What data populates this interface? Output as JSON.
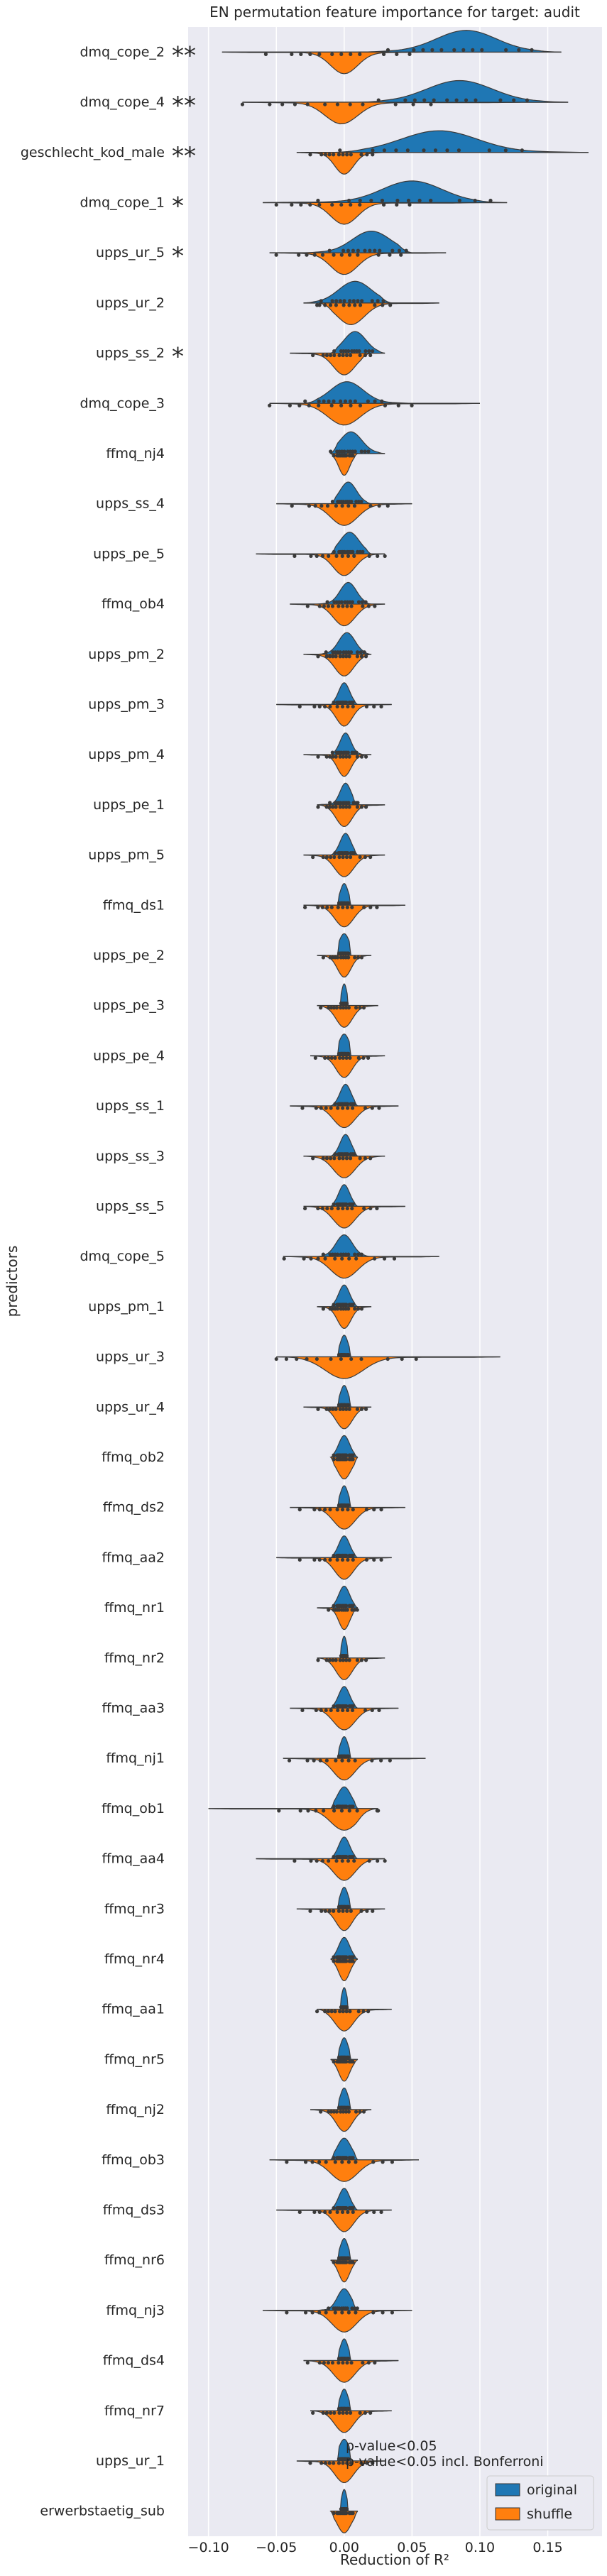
{
  "chart_data": {
    "type": "violin",
    "title": "EN permutation feature importance for target: audit",
    "xlabel": "Reduction of R²",
    "ylabel": "predictors",
    "xlim": [
      -0.115,
      0.19
    ],
    "x_ticks": [
      -0.1,
      -0.05,
      0.0,
      0.05,
      0.1,
      0.15
    ],
    "x_tick_labels": [
      "−0.10",
      "−0.05",
      "0.00",
      "0.05",
      "0.10",
      "0.15"
    ],
    "grid": true,
    "legend": {
      "placement": "bottom-right",
      "entries": [
        {
          "name": "original",
          "color": "#1f77b4"
        },
        {
          "name": "shuffle",
          "color": "#ff7f0e"
        }
      ]
    },
    "significance_notes": [
      "p-value<0.05",
      "p-value<0.05 incl. Bonferroni"
    ],
    "predictors": [
      {
        "name": "dmq_cope_2",
        "sig": "**",
        "original": {
          "center": 0.09,
          "spread": 0.022,
          "min": 0.01,
          "max": 0.16
        },
        "shuffle": {
          "center": 0.0,
          "spread": 0.01,
          "min": -0.09,
          "max": 0.06
        }
      },
      {
        "name": "dmq_cope_4",
        "sig": "**",
        "original": {
          "center": 0.085,
          "spread": 0.024,
          "min": 0.01,
          "max": 0.165
        },
        "shuffle": {
          "center": -0.002,
          "spread": 0.012,
          "min": -0.075,
          "max": 0.13
        }
      },
      {
        "name": "geschlecht_kod_male",
        "sig": "**",
        "original": {
          "center": 0.07,
          "spread": 0.028,
          "min": -0.01,
          "max": 0.18
        },
        "shuffle": {
          "center": 0.0,
          "spread": 0.007,
          "min": -0.035,
          "max": 0.03
        }
      },
      {
        "name": "dmq_cope_1",
        "sig": "*",
        "original": {
          "center": 0.05,
          "spread": 0.022,
          "min": -0.06,
          "max": 0.12
        },
        "shuffle": {
          "center": 0.0,
          "spread": 0.01,
          "min": -0.05,
          "max": 0.1
        }
      },
      {
        "name": "upps_ur_5",
        "sig": "*",
        "original": {
          "center": 0.02,
          "spread": 0.014,
          "min": -0.03,
          "max": 0.05
        },
        "shuffle": {
          "center": 0.0,
          "spread": 0.01,
          "min": -0.055,
          "max": 0.075
        }
      },
      {
        "name": "upps_ur_2",
        "sig": "",
        "original": {
          "center": 0.008,
          "spread": 0.012,
          "min": -0.03,
          "max": 0.035
        },
        "shuffle": {
          "center": 0.005,
          "spread": 0.01,
          "min": -0.02,
          "max": 0.07
        }
      },
      {
        "name": "upps_ss_2",
        "sig": "*",
        "original": {
          "center": 0.008,
          "spread": 0.008,
          "min": -0.01,
          "max": 0.03
        },
        "shuffle": {
          "center": 0.0,
          "spread": 0.008,
          "min": -0.04,
          "max": 0.02
        }
      },
      {
        "name": "dmq_cope_3",
        "sig": "",
        "original": {
          "center": 0.002,
          "spread": 0.012,
          "min": -0.03,
          "max": 0.05
        },
        "shuffle": {
          "center": 0.0,
          "spread": 0.012,
          "min": -0.055,
          "max": 0.1
        }
      },
      {
        "name": "ffmq_nj4",
        "sig": "",
        "original": {
          "center": 0.005,
          "spread": 0.008,
          "min": -0.01,
          "max": 0.03
        },
        "shuffle": {
          "center": 0.0,
          "spread": 0.004,
          "min": -0.01,
          "max": 0.01
        }
      },
      {
        "name": "upps_ss_4",
        "sig": "",
        "original": {
          "center": 0.003,
          "spread": 0.006,
          "min": -0.01,
          "max": 0.02
        },
        "shuffle": {
          "center": 0.0,
          "spread": 0.01,
          "min": -0.05,
          "max": 0.05
        }
      },
      {
        "name": "upps_pe_5",
        "sig": "",
        "original": {
          "center": 0.004,
          "spread": 0.007,
          "min": -0.01,
          "max": 0.02
        },
        "shuffle": {
          "center": 0.0,
          "spread": 0.008,
          "min": -0.065,
          "max": 0.03
        }
      },
      {
        "name": "ffmq_ob4",
        "sig": "",
        "original": {
          "center": 0.003,
          "spread": 0.006,
          "min": -0.02,
          "max": 0.02
        },
        "shuffle": {
          "center": 0.0,
          "spread": 0.008,
          "min": -0.04,
          "max": 0.03
        }
      },
      {
        "name": "upps_pm_2",
        "sig": "",
        "original": {
          "center": 0.002,
          "spread": 0.006,
          "min": -0.02,
          "max": 0.02
        },
        "shuffle": {
          "center": 0.0,
          "spread": 0.007,
          "min": -0.03,
          "max": 0.02
        }
      },
      {
        "name": "upps_pm_3",
        "sig": "",
        "original": {
          "center": 0.0,
          "spread": 0.004,
          "min": -0.01,
          "max": 0.01
        },
        "shuffle": {
          "center": 0.0,
          "spread": 0.006,
          "min": -0.05,
          "max": 0.035
        }
      },
      {
        "name": "upps_pm_4",
        "sig": "",
        "original": {
          "center": 0.001,
          "spread": 0.004,
          "min": -0.01,
          "max": 0.015
        },
        "shuffle": {
          "center": 0.0,
          "spread": 0.005,
          "min": -0.03,
          "max": 0.02
        }
      },
      {
        "name": "upps_pe_1",
        "sig": "",
        "original": {
          "center": 0.001,
          "spread": 0.004,
          "min": -0.02,
          "max": 0.01
        },
        "shuffle": {
          "center": 0.0,
          "spread": 0.006,
          "min": -0.02,
          "max": 0.03
        }
      },
      {
        "name": "upps_pm_5",
        "sig": "",
        "original": {
          "center": 0.001,
          "spread": 0.004,
          "min": -0.01,
          "max": 0.01
        },
        "shuffle": {
          "center": 0.0,
          "spread": 0.007,
          "min": -0.03,
          "max": 0.03
        }
      },
      {
        "name": "ffmq_ds1",
        "sig": "",
        "original": {
          "center": 0.0,
          "spread": 0.003,
          "min": -0.005,
          "max": 0.005
        },
        "shuffle": {
          "center": 0.0,
          "spread": 0.007,
          "min": -0.03,
          "max": 0.045
        }
      },
      {
        "name": "upps_pe_2",
        "sig": "",
        "original": {
          "center": 0.0,
          "spread": 0.004,
          "min": -0.005,
          "max": 0.005
        },
        "shuffle": {
          "center": 0.0,
          "spread": 0.005,
          "min": -0.02,
          "max": 0.02
        }
      },
      {
        "name": "upps_pe_3",
        "sig": "",
        "original": {
          "center": 0.0,
          "spread": 0.002,
          "min": -0.003,
          "max": 0.003
        },
        "shuffle": {
          "center": 0.0,
          "spread": 0.006,
          "min": -0.02,
          "max": 0.025
        }
      },
      {
        "name": "upps_pe_4",
        "sig": "",
        "original": {
          "center": 0.0,
          "spread": 0.004,
          "min": -0.005,
          "max": 0.005
        },
        "shuffle": {
          "center": 0.0,
          "spread": 0.006,
          "min": -0.025,
          "max": 0.03
        }
      },
      {
        "name": "upps_ss_1",
        "sig": "",
        "original": {
          "center": 0.001,
          "spread": 0.004,
          "min": -0.01,
          "max": 0.01
        },
        "shuffle": {
          "center": 0.0,
          "spread": 0.008,
          "min": -0.04,
          "max": 0.04
        }
      },
      {
        "name": "upps_ss_3",
        "sig": "",
        "original": {
          "center": 0.001,
          "spread": 0.004,
          "min": -0.01,
          "max": 0.01
        },
        "shuffle": {
          "center": 0.0,
          "spread": 0.008,
          "min": -0.03,
          "max": 0.03
        }
      },
      {
        "name": "upps_ss_5",
        "sig": "",
        "original": {
          "center": 0.0,
          "spread": 0.004,
          "min": -0.01,
          "max": 0.01
        },
        "shuffle": {
          "center": 0.0,
          "spread": 0.008,
          "min": -0.03,
          "max": 0.045
        }
      },
      {
        "name": "dmq_cope_5",
        "sig": "",
        "original": {
          "center": 0.0,
          "spread": 0.006,
          "min": -0.02,
          "max": 0.02
        },
        "shuffle": {
          "center": 0.0,
          "spread": 0.01,
          "min": -0.045,
          "max": 0.07
        }
      },
      {
        "name": "upps_pm_1",
        "sig": "",
        "original": {
          "center": 0.0,
          "spread": 0.004,
          "min": -0.01,
          "max": 0.01
        },
        "shuffle": {
          "center": 0.0,
          "spread": 0.005,
          "min": -0.02,
          "max": 0.02
        }
      },
      {
        "name": "upps_ur_3",
        "sig": "",
        "original": {
          "center": 0.0,
          "spread": 0.003,
          "min": -0.005,
          "max": 0.005
        },
        "shuffle": {
          "center": 0.0,
          "spread": 0.014,
          "min": -0.05,
          "max": 0.115
        }
      },
      {
        "name": "upps_ur_4",
        "sig": "",
        "original": {
          "center": 0.0,
          "spread": 0.003,
          "min": -0.005,
          "max": 0.005
        },
        "shuffle": {
          "center": 0.0,
          "spread": 0.006,
          "min": -0.03,
          "max": 0.02
        }
      },
      {
        "name": "ffmq_ob2",
        "sig": "",
        "original": {
          "center": 0.0,
          "spread": 0.004,
          "min": -0.01,
          "max": 0.01
        },
        "shuffle": {
          "center": 0.0,
          "spread": 0.005,
          "min": -0.01,
          "max": 0.01
        }
      },
      {
        "name": "ffmq_ds2",
        "sig": "",
        "original": {
          "center": 0.0,
          "spread": 0.003,
          "min": -0.005,
          "max": 0.005
        },
        "shuffle": {
          "center": 0.0,
          "spread": 0.008,
          "min": -0.04,
          "max": 0.045
        }
      },
      {
        "name": "ffmq_aa2",
        "sig": "",
        "original": {
          "center": 0.0,
          "spread": 0.004,
          "min": -0.01,
          "max": 0.01
        },
        "shuffle": {
          "center": 0.0,
          "spread": 0.007,
          "min": -0.05,
          "max": 0.035
        }
      },
      {
        "name": "ffmq_nr1",
        "sig": "",
        "original": {
          "center": 0.0,
          "spread": 0.004,
          "min": -0.01,
          "max": 0.01
        },
        "shuffle": {
          "center": 0.0,
          "spread": 0.004,
          "min": -0.02,
          "max": 0.01
        }
      },
      {
        "name": "ffmq_nr2",
        "sig": "",
        "original": {
          "center": 0.0,
          "spread": 0.002,
          "min": -0.003,
          "max": 0.003
        },
        "shuffle": {
          "center": 0.0,
          "spread": 0.006,
          "min": -0.02,
          "max": 0.03
        }
      },
      {
        "name": "ffmq_aa3",
        "sig": "",
        "original": {
          "center": 0.0,
          "spread": 0.004,
          "min": -0.01,
          "max": 0.01
        },
        "shuffle": {
          "center": 0.0,
          "spread": 0.008,
          "min": -0.04,
          "max": 0.04
        }
      },
      {
        "name": "ffmq_nj1",
        "sig": "",
        "original": {
          "center": 0.0,
          "spread": 0.003,
          "min": -0.005,
          "max": 0.005
        },
        "shuffle": {
          "center": 0.0,
          "spread": 0.008,
          "min": -0.045,
          "max": 0.06
        }
      },
      {
        "name": "ffmq_ob1",
        "sig": "",
        "original": {
          "center": 0.0,
          "spread": 0.005,
          "min": -0.01,
          "max": 0.01
        },
        "shuffle": {
          "center": 0.0,
          "spread": 0.01,
          "min": -0.1,
          "max": 0.025
        }
      },
      {
        "name": "ffmq_aa4",
        "sig": "",
        "original": {
          "center": 0.0,
          "spread": 0.004,
          "min": -0.01,
          "max": 0.01
        },
        "shuffle": {
          "center": 0.0,
          "spread": 0.008,
          "min": -0.065,
          "max": 0.03
        }
      },
      {
        "name": "ffmq_nr3",
        "sig": "",
        "original": {
          "center": 0.0,
          "spread": 0.003,
          "min": -0.005,
          "max": 0.005
        },
        "shuffle": {
          "center": 0.0,
          "spread": 0.006,
          "min": -0.035,
          "max": 0.03
        }
      },
      {
        "name": "ffmq_nr4",
        "sig": "",
        "original": {
          "center": 0.0,
          "spread": 0.004,
          "min": -0.01,
          "max": 0.01
        },
        "shuffle": {
          "center": 0.0,
          "spread": 0.004,
          "min": -0.01,
          "max": 0.01
        }
      },
      {
        "name": "ffmq_aa1",
        "sig": "",
        "original": {
          "center": 0.0,
          "spread": 0.002,
          "min": -0.003,
          "max": 0.003
        },
        "shuffle": {
          "center": 0.0,
          "spread": 0.007,
          "min": -0.02,
          "max": 0.035
        }
      },
      {
        "name": "ffmq_nr5",
        "sig": "",
        "original": {
          "center": 0.0,
          "spread": 0.003,
          "min": -0.005,
          "max": 0.005
        },
        "shuffle": {
          "center": 0.0,
          "spread": 0.004,
          "min": -0.01,
          "max": 0.01
        }
      },
      {
        "name": "ffmq_nj2",
        "sig": "",
        "original": {
          "center": 0.0,
          "spread": 0.003,
          "min": -0.005,
          "max": 0.005
        },
        "shuffle": {
          "center": 0.0,
          "spread": 0.006,
          "min": -0.025,
          "max": 0.02
        }
      },
      {
        "name": "ffmq_ob3",
        "sig": "",
        "original": {
          "center": 0.0,
          "spread": 0.005,
          "min": -0.01,
          "max": 0.01
        },
        "shuffle": {
          "center": 0.0,
          "spread": 0.01,
          "min": -0.055,
          "max": 0.055
        }
      },
      {
        "name": "ffmq_ds3",
        "sig": "",
        "original": {
          "center": 0.0,
          "spread": 0.004,
          "min": -0.01,
          "max": 0.01
        },
        "shuffle": {
          "center": 0.0,
          "spread": 0.007,
          "min": -0.05,
          "max": 0.035
        }
      },
      {
        "name": "ffmq_nr6",
        "sig": "",
        "original": {
          "center": 0.0,
          "spread": 0.003,
          "min": -0.005,
          "max": 0.005
        },
        "shuffle": {
          "center": 0.0,
          "spread": 0.004,
          "min": -0.01,
          "max": 0.01
        }
      },
      {
        "name": "ffmq_nj3",
        "sig": "",
        "original": {
          "center": 0.0,
          "spread": 0.005,
          "min": -0.02,
          "max": 0.01
        },
        "shuffle": {
          "center": 0.0,
          "spread": 0.009,
          "min": -0.06,
          "max": 0.05
        }
      },
      {
        "name": "ffmq_ds4",
        "sig": "",
        "original": {
          "center": 0.0,
          "spread": 0.003,
          "min": -0.005,
          "max": 0.005
        },
        "shuffle": {
          "center": 0.0,
          "spread": 0.008,
          "min": -0.03,
          "max": 0.04
        }
      },
      {
        "name": "ffmq_nr7",
        "sig": "",
        "original": {
          "center": 0.0,
          "spread": 0.003,
          "min": -0.005,
          "max": 0.005
        },
        "shuffle": {
          "center": 0.0,
          "spread": 0.007,
          "min": -0.025,
          "max": 0.035
        }
      },
      {
        "name": "upps_ur_1",
        "sig": "",
        "original": {
          "center": 0.0,
          "spread": 0.004,
          "min": -0.005,
          "max": 0.005
        },
        "shuffle": {
          "center": 0.0,
          "spread": 0.007,
          "min": -0.035,
          "max": 0.03
        }
      },
      {
        "name": "erwerbstaetig_sub",
        "sig": "",
        "original": {
          "center": 0.0,
          "spread": 0.002,
          "min": -0.003,
          "max": 0.003
        },
        "shuffle": {
          "center": 0.0,
          "spread": 0.005,
          "min": -0.01,
          "max": 0.01
        }
      }
    ]
  }
}
